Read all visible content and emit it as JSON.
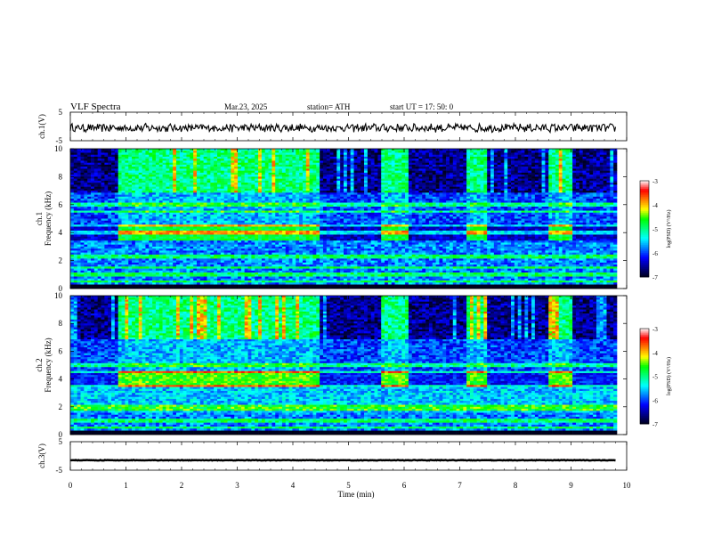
{
  "header": {
    "title": "VLF  Spectra",
    "date": "Mar.23, 2025",
    "station": "station= ATH",
    "start_ut": "start  UT  =   17: 50: 0"
  },
  "colors": {
    "spectrum_scale": [
      "#00001e",
      "#00008b",
      "#0000ff",
      "#0080ff",
      "#00ffff",
      "#00ff80",
      "#00ff00",
      "#ffff00",
      "#ff8000",
      "#ff0000",
      "#ffffff"
    ],
    "trace": "#000000",
    "background": "#ffffff"
  },
  "chart_data": [
    {
      "type": "line",
      "name": "ch.1 waveform",
      "ylabel": "ch.1(V)",
      "ylim": [
        -5,
        5
      ],
      "yticks": [
        "5",
        "-5"
      ],
      "xlim": [
        0,
        10
      ],
      "shared_x_axis": true,
      "description_values": {
        "mean": -0.5,
        "amplitude": 1.3
      }
    },
    {
      "type": "heatmap",
      "name": "ch.1 spectrogram",
      "ylabel": "ch.1\nFrequency (kHz)",
      "ylim": [
        0,
        10
      ],
      "yticks": [
        "0",
        "2",
        "4",
        "6",
        "8",
        "10"
      ],
      "xlim": [
        0,
        9.8
      ],
      "colorbar": {
        "label": "log(PSD) (V²/Hz)",
        "range": [
          -7,
          -3
        ],
        "ticks": [
          "-3",
          "-4",
          "-5",
          "-6",
          "-7"
        ]
      },
      "burst_intervals_min": [
        [
          0.85,
          4.5
        ],
        [
          5.6,
          6.05
        ],
        [
          7.1,
          7.5
        ],
        [
          8.55,
          9.0
        ]
      ],
      "burst_freq_khz": 4.0,
      "bands_khz": [
        0.5,
        1.0,
        1.5,
        2.3,
        4.0,
        4.5,
        5.5,
        6.0
      ]
    },
    {
      "type": "heatmap",
      "name": "ch.2 spectrogram",
      "ylabel": "ch.2\nFrequency (kHz)",
      "ylim": [
        0,
        10
      ],
      "yticks": [
        "0",
        "2",
        "4",
        "6",
        "8",
        "10"
      ],
      "xlim": [
        0,
        9.8
      ],
      "colorbar": {
        "label": "log(PSD) (V²/Hz)",
        "range": [
          -7,
          -3
        ],
        "ticks": [
          "-3",
          "-4",
          "-5",
          "-6",
          "-7"
        ]
      },
      "burst_intervals_min": [
        [
          0.85,
          4.5
        ],
        [
          5.6,
          6.05
        ],
        [
          7.1,
          7.5
        ],
        [
          8.55,
          9.0
        ]
      ],
      "burst_freq_khz": 4.0,
      "bands_khz": [
        0.5,
        1.0,
        1.8,
        2.0,
        3.5,
        4.5,
        5.0
      ]
    },
    {
      "type": "line",
      "name": "ch.3 waveform",
      "ylabel": "ch.3(V)",
      "ylim": [
        -5,
        5
      ],
      "yticks": [
        "5",
        "-5"
      ],
      "xlim": [
        0,
        10
      ],
      "description_values": {
        "mean": -1.5,
        "amplitude": 0.2
      }
    }
  ],
  "xaxis": {
    "label": "Time  (min)",
    "ticks": [
      "0",
      "1",
      "2",
      "3",
      "4",
      "5",
      "6",
      "7",
      "8",
      "9",
      "10"
    ]
  }
}
